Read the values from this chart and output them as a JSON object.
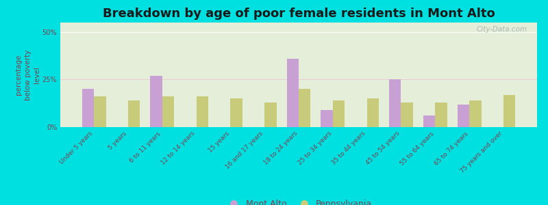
{
  "title": "Breakdown by age of poor female residents in Mont Alto",
  "categories": [
    "Under 5 years",
    "5 years",
    "6 to 11 years",
    "12 to 14 years",
    "15 years",
    "16 and 17 years",
    "18 to 24 years",
    "25 to 34 years",
    "35 to 44 years",
    "45 to 54 years",
    "55 to 64 years",
    "65 to 74 years",
    "75 years and over"
  ],
  "mont_alto": [
    20,
    0,
    27,
    0,
    0,
    0,
    36,
    9,
    0,
    25,
    6,
    12,
    0
  ],
  "pennsylvania": [
    16,
    14,
    16,
    16,
    15,
    13,
    20,
    14,
    15,
    13,
    13,
    14,
    17
  ],
  "mont_alto_color": "#c8a0d4",
  "pennsylvania_color": "#c8cc7a",
  "plot_bg_color": "#e4eed8",
  "ylabel": "percentage\nbelow poverty\nlevel",
  "ylim": [
    0,
    55
  ],
  "yticks": [
    0,
    25,
    50
  ],
  "ytick_labels": [
    "0%",
    "25%",
    "50%"
  ],
  "watermark": "City-Data.com",
  "outer_bg": "#00e0e0",
  "legend_mont_alto": "Mont Alto",
  "legend_pennsylvania": "Pennsylvania",
  "title_fontsize": 13,
  "axis_label_fontsize": 7.5,
  "tick_fontsize": 7,
  "label_color": "#804050"
}
